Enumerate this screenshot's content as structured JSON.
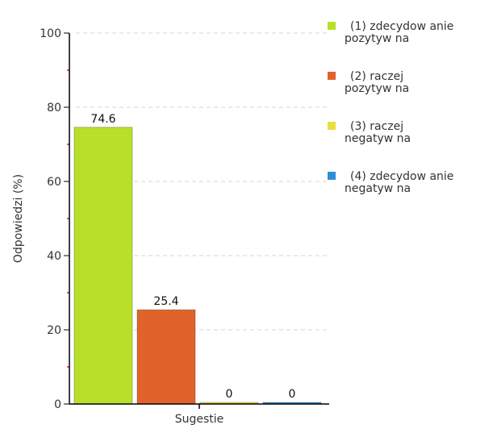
{
  "chart_data": {
    "type": "bar",
    "categories": [
      "Sugestie"
    ],
    "series": [
      {
        "name": "(1) zdecydowanie pozytywna",
        "legend_lines": [
          "(1) zdecydow anie",
          "pozytyw na"
        ],
        "value": 74.6,
        "label": "74.6",
        "color": "#b8e02a"
      },
      {
        "name": "(2) raczej pozytywna",
        "legend_lines": [
          "(2) raczej",
          "pozytyw na"
        ],
        "value": 25.4,
        "label": "25.4",
        "color": "#e0632c"
      },
      {
        "name": "(3) raczej negatywna",
        "legend_lines": [
          "(3) raczej",
          "negatyw na"
        ],
        "value": 0,
        "label": "0",
        "color": "#e8e03a"
      },
      {
        "name": "(4) zdecydowanie negatywna",
        "legend_lines": [
          "(4) zdecydow anie",
          "negatyw na"
        ],
        "value": 0,
        "label": "0",
        "color": "#2f8fd6"
      }
    ],
    "xlabel": "Sugestie",
    "ylabel": "Odpowiedzi (%)",
    "ylim": [
      0,
      100
    ],
    "yticks": [
      0,
      20,
      40,
      60,
      80,
      100
    ],
    "grid": true,
    "legend_position": "top-right"
  }
}
